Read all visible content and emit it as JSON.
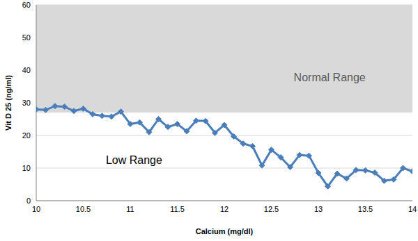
{
  "chart_data": {
    "type": "line",
    "x_label": "Calcium (mg/dl)",
    "y_label": "Vit D 25 (ng/ml)",
    "x": [
      10,
      10.1,
      10.2,
      10.3,
      10.4,
      10.5,
      10.6,
      10.7,
      10.8,
      10.9,
      11,
      11.1,
      11.2,
      11.3,
      11.4,
      11.5,
      11.6,
      11.7,
      11.8,
      11.9,
      12,
      12.1,
      12.2,
      12.3,
      12.4,
      12.5,
      12.6,
      12.7,
      12.8,
      12.9,
      13,
      13.1,
      13.2,
      13.3,
      13.4,
      13.5,
      13.6,
      13.7,
      13.8,
      13.9,
      14
    ],
    "values": [
      28,
      27.8,
      29,
      28.8,
      27.5,
      28.2,
      26.5,
      26,
      25.8,
      27.3,
      23.5,
      24,
      21,
      25,
      22.6,
      23.5,
      21.3,
      24.5,
      24.4,
      20.8,
      23.2,
      19.7,
      17.5,
      16.7,
      10.8,
      15.6,
      13.3,
      10.3,
      14,
      13.8,
      8.5,
      4.4,
      8.3,
      6.8,
      9.4,
      9.3,
      8.6,
      6.1,
      6.5,
      10,
      9
    ],
    "color": "#4a7ebb",
    "marker": "diamond",
    "xlim": [
      10,
      14
    ],
    "xticks": [
      10,
      10.5,
      11,
      11.5,
      12,
      12.5,
      13,
      13.5,
      14
    ],
    "ylim": [
      0,
      60
    ],
    "yticks": [
      0,
      10,
      20,
      30,
      40,
      50,
      60
    ],
    "grid": "y",
    "ranges": [
      {
        "label": "Normal Range",
        "from": 27,
        "to": 60,
        "color": "#d9d9d9"
      },
      {
        "label": "Low Range",
        "from": 0,
        "to": 27
      }
    ]
  }
}
